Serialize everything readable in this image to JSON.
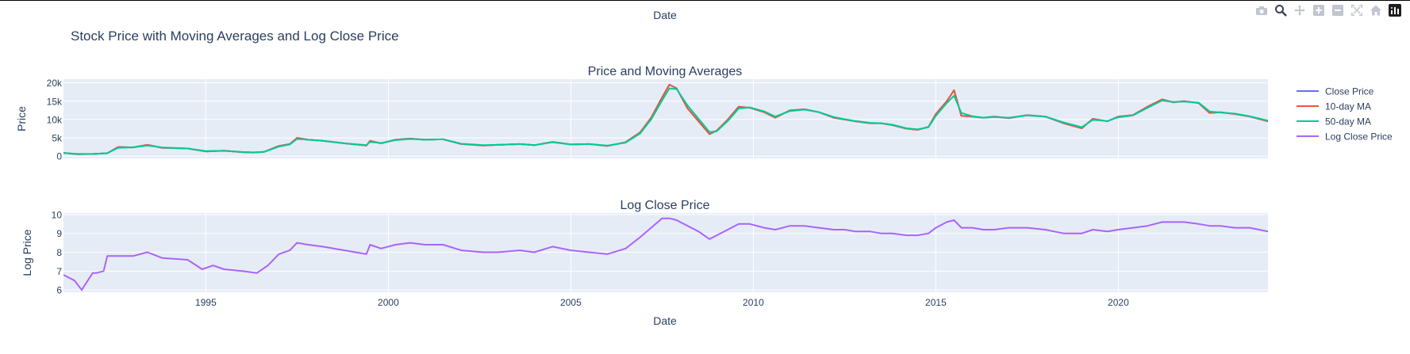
{
  "page": {
    "title": "Stock Price with Moving Averages and Log Close Price",
    "top_axis_title": "Date"
  },
  "modebar": {
    "items": [
      {
        "icon": "camera-icon",
        "active": false
      },
      {
        "icon": "zoom-icon",
        "active": true
      },
      {
        "icon": "pan-icon",
        "active": false
      },
      {
        "icon": "zoom-in-icon",
        "active": false
      },
      {
        "icon": "zoom-out-icon",
        "active": false
      },
      {
        "icon": "autoscale-icon",
        "active": false
      },
      {
        "icon": "home-icon",
        "active": false
      },
      {
        "icon": "plotly-logo-icon",
        "active": false
      }
    ],
    "color_inactive": "#c0c6cf",
    "color_active": "#3b4252"
  },
  "colors": {
    "plot_bg": "#e5ecf6",
    "grid": "#ffffff",
    "text": "#2a3f5f",
    "close": "#636efa",
    "ma10": "#ef553b",
    "ma50": "#00cc96",
    "log": "#ab63fa"
  },
  "chart_data": [
    {
      "type": "line",
      "title": "Price and Moving Averages",
      "xlabel": "",
      "ylabel": "Price",
      "xlim": [
        1991.1,
        2024.1
      ],
      "ylim": [
        -600,
        21000
      ],
      "y_ticks": [
        {
          "value": 0,
          "label": "0"
        },
        {
          "value": 5000,
          "label": "5k"
        },
        {
          "value": 10000,
          "label": "10k"
        },
        {
          "value": 15000,
          "label": "15k"
        },
        {
          "value": 20000,
          "label": "20k"
        }
      ],
      "x_grid": [
        1995,
        2000,
        2005,
        2010,
        2015,
        2020
      ],
      "grid": true,
      "x": [
        1991.1,
        1991.5,
        1991.9,
        1992.3,
        1992.6,
        1993.0,
        1993.4,
        1993.8,
        1994.5,
        1995.0,
        1995.5,
        1996.0,
        1996.3,
        1996.6,
        1997.0,
        1997.3,
        1997.5,
        1997.8,
        1998.2,
        1998.8,
        1999.4,
        1999.5,
        1999.8,
        2000.2,
        2000.6,
        2001.0,
        2001.5,
        2002.0,
        2002.6,
        2003.0,
        2003.6,
        2004.0,
        2004.5,
        2005.0,
        2005.5,
        2006.0,
        2006.5,
        2006.9,
        2007.2,
        2007.5,
        2007.7,
        2007.9,
        2008.2,
        2008.5,
        2008.8,
        2009.0,
        2009.3,
        2009.6,
        2009.9,
        2010.3,
        2010.6,
        2011.0,
        2011.4,
        2011.8,
        2012.2,
        2012.5,
        2012.8,
        2013.2,
        2013.5,
        2013.8,
        2014.2,
        2014.5,
        2014.8,
        2015.0,
        2015.3,
        2015.5,
        2015.7,
        2016.0,
        2016.3,
        2016.6,
        2017.0,
        2017.5,
        2018.0,
        2018.5,
        2019.0,
        2019.3,
        2019.7,
        2020.0,
        2020.4,
        2020.8,
        2021.2,
        2021.5,
        2021.8,
        2022.2,
        2022.5,
        2022.8,
        2023.2,
        2023.6,
        2024.1
      ],
      "series": [
        {
          "name": "Close Price",
          "color": "#636efa",
          "values": [
            900,
            550,
            600,
            800,
            2500,
            2400,
            3100,
            2300,
            2100,
            1300,
            1500,
            1100,
            1000,
            1200,
            2800,
            3300,
            5000,
            4500,
            4200,
            3500,
            2900,
            4200,
            3500,
            4500,
            4800,
            4500,
            4600,
            3300,
            2900,
            3100,
            3300,
            3000,
            3900,
            3200,
            3300,
            2800,
            3800,
            6500,
            10500,
            16000,
            19500,
            18500,
            13000,
            9500,
            6000,
            7000,
            10000,
            13500,
            13200,
            12000,
            10500,
            12500,
            12800,
            12000,
            10500,
            10000,
            9500,
            9000,
            9000,
            8500,
            7500,
            7200,
            8000,
            11500,
            15000,
            18000,
            11000,
            10800,
            10500,
            10800,
            10400,
            11200,
            10800,
            9000,
            7600,
            10200,
            9500,
            10800,
            11200,
            13500,
            15500,
            14700,
            15000,
            14500,
            11800,
            12000,
            11500,
            10800,
            9500
          ]
        },
        {
          "name": "10-day MA",
          "color": "#ef553b",
          "values": [
            900,
            550,
            600,
            800,
            2500,
            2400,
            3100,
            2300,
            2100,
            1300,
            1500,
            1100,
            1000,
            1200,
            2800,
            3300,
            5000,
            4500,
            4200,
            3500,
            2900,
            4200,
            3500,
            4500,
            4800,
            4500,
            4600,
            3300,
            2900,
            3100,
            3300,
            3000,
            3900,
            3200,
            3300,
            2800,
            3800,
            6500,
            10500,
            16000,
            19500,
            18500,
            13000,
            9500,
            6000,
            7000,
            10000,
            13500,
            13200,
            12000,
            10500,
            12500,
            12800,
            12000,
            10500,
            10000,
            9500,
            9000,
            9000,
            8500,
            7500,
            7200,
            8000,
            11500,
            15000,
            18000,
            11000,
            10800,
            10500,
            10800,
            10400,
            11200,
            10800,
            9000,
            7600,
            10200,
            9500,
            10800,
            11200,
            13500,
            15500,
            14700,
            15000,
            14500,
            11800,
            12000,
            11500,
            10800,
            9500
          ]
        },
        {
          "name": "50-day MA",
          "color": "#00cc96",
          "values": [
            900,
            600,
            620,
            800,
            2300,
            2400,
            2900,
            2400,
            2100,
            1400,
            1450,
            1150,
            1050,
            1200,
            2600,
            3200,
            4700,
            4500,
            4200,
            3500,
            3000,
            3900,
            3600,
            4400,
            4700,
            4500,
            4600,
            3400,
            3000,
            3100,
            3300,
            3000,
            3800,
            3200,
            3300,
            2900,
            3700,
            6200,
            10000,
            15200,
            18500,
            18300,
            13800,
            10200,
            6600,
            6800,
            9600,
            13000,
            13300,
            12200,
            10800,
            12300,
            12700,
            12000,
            10700,
            10100,
            9600,
            9100,
            9000,
            8600,
            7600,
            7300,
            7900,
            11000,
            14500,
            16500,
            11800,
            10900,
            10500,
            10700,
            10500,
            11100,
            10800,
            9200,
            7900,
            9900,
            9600,
            10600,
            11100,
            13200,
            15200,
            14800,
            14900,
            14600,
            12200,
            11900,
            11600,
            10900,
            9700
          ]
        }
      ]
    },
    {
      "type": "line",
      "title": "Log Close Price",
      "xlabel": "Date",
      "ylabel": "Log Price",
      "xlim": [
        1991.1,
        2024.1
      ],
      "ylim": [
        5.88,
        10.08
      ],
      "y_ticks": [
        {
          "value": 6,
          "label": "6"
        },
        {
          "value": 7,
          "label": "7"
        },
        {
          "value": 8,
          "label": "8"
        },
        {
          "value": 9,
          "label": "9"
        },
        {
          "value": 10,
          "label": "10"
        }
      ],
      "x_ticks": [
        {
          "value": 1995,
          "label": "1995"
        },
        {
          "value": 2000,
          "label": "2000"
        },
        {
          "value": 2005,
          "label": "2005"
        },
        {
          "value": 2010,
          "label": "2010"
        },
        {
          "value": 2015,
          "label": "2015"
        },
        {
          "value": 2020,
          "label": "2020"
        }
      ],
      "grid": true,
      "series": [
        {
          "name": "Log Close Price",
          "color": "#ab63fa",
          "x": [
            1991.1,
            1991.4,
            1991.6,
            1991.9,
            1992.0,
            1992.2,
            1992.3,
            1992.6,
            1993.0,
            1993.4,
            1993.8,
            1994.5,
            1994.9,
            1995.2,
            1995.5,
            1996.0,
            1996.4,
            1996.7,
            1997.0,
            1997.3,
            1997.5,
            1997.8,
            1998.2,
            1998.8,
            1999.4,
            1999.5,
            1999.8,
            2000.2,
            2000.6,
            2001.0,
            2001.5,
            2002.0,
            2002.6,
            2003.0,
            2003.6,
            2004.0,
            2004.5,
            2005.0,
            2005.5,
            2006.0,
            2006.5,
            2006.9,
            2007.2,
            2007.5,
            2007.7,
            2007.9,
            2008.2,
            2008.5,
            2008.8,
            2009.0,
            2009.3,
            2009.6,
            2009.9,
            2010.3,
            2010.6,
            2011.0,
            2011.4,
            2011.8,
            2012.2,
            2012.5,
            2012.8,
            2013.2,
            2013.5,
            2013.8,
            2014.2,
            2014.5,
            2014.8,
            2015.0,
            2015.3,
            2015.5,
            2015.7,
            2016.0,
            2016.3,
            2016.6,
            2017.0,
            2017.5,
            2018.0,
            2018.5,
            2019.0,
            2019.3,
            2019.7,
            2020.0,
            2020.4,
            2020.8,
            2021.2,
            2021.5,
            2021.8,
            2022.2,
            2022.5,
            2022.8,
            2023.2,
            2023.6,
            2024.1
          ],
          "values": [
            6.8,
            6.5,
            6.0,
            6.9,
            6.9,
            7.0,
            7.8,
            7.8,
            7.8,
            8.0,
            7.7,
            7.6,
            7.1,
            7.3,
            7.1,
            7.0,
            6.9,
            7.3,
            7.9,
            8.1,
            8.5,
            8.4,
            8.3,
            8.1,
            7.9,
            8.4,
            8.2,
            8.4,
            8.5,
            8.4,
            8.4,
            8.1,
            8.0,
            8.0,
            8.1,
            8.0,
            8.3,
            8.1,
            8.0,
            7.9,
            8.2,
            8.8,
            9.3,
            9.8,
            9.8,
            9.7,
            9.4,
            9.1,
            8.7,
            8.9,
            9.2,
            9.5,
            9.5,
            9.3,
            9.2,
            9.4,
            9.4,
            9.3,
            9.2,
            9.2,
            9.1,
            9.1,
            9.0,
            9.0,
            8.9,
            8.9,
            9.0,
            9.3,
            9.6,
            9.7,
            9.3,
            9.3,
            9.2,
            9.2,
            9.3,
            9.3,
            9.2,
            9.0,
            9.0,
            9.2,
            9.1,
            9.2,
            9.3,
            9.4,
            9.6,
            9.6,
            9.6,
            9.5,
            9.4,
            9.4,
            9.3,
            9.3,
            9.1
          ]
        }
      ]
    }
  ]
}
